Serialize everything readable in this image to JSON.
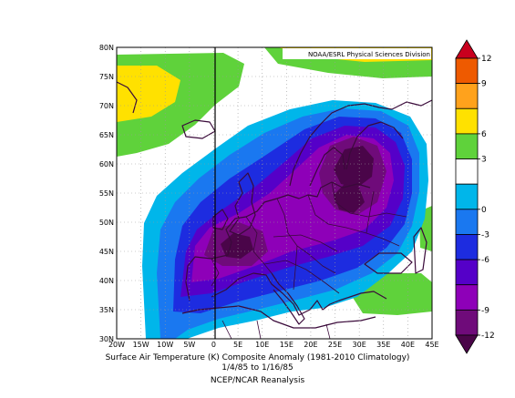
{
  "map": {
    "credit": "NOAA/ESRL Physical Sciences Division",
    "lat_labels": [
      "80N",
      "75N",
      "70N",
      "65N",
      "60N",
      "55N",
      "50N",
      "45N",
      "40N",
      "35N",
      "30N"
    ],
    "lon_labels": [
      "20W",
      "15W",
      "10W",
      "5W",
      "0",
      "5E",
      "10E",
      "15E",
      "20E",
      "25E",
      "30E",
      "35E",
      "40E",
      "45E"
    ],
    "colorbar_ticks": [
      "12",
      "9",
      "6",
      "3",
      "0",
      "-3",
      "-6",
      "-9",
      "-12"
    ],
    "colorbar_colors": [
      "#c8001e",
      "#ee5a00",
      "#ffa21c",
      "#ffe100",
      "#5fd23b",
      "#ffffff",
      "#00b6ea",
      "#1a78f0",
      "#1d2ce0",
      "#5500c8",
      "#8e00b8",
      "#6f0b7a",
      "#4a0549"
    ]
  },
  "caption": {
    "line1": "Surface Air Temperature (K) Composite Anomaly (1981-2010 Climatology)",
    "line2": "1/4/85  to 1/16/85",
    "line3": "NCEP/NCAR Reanalysis"
  }
}
